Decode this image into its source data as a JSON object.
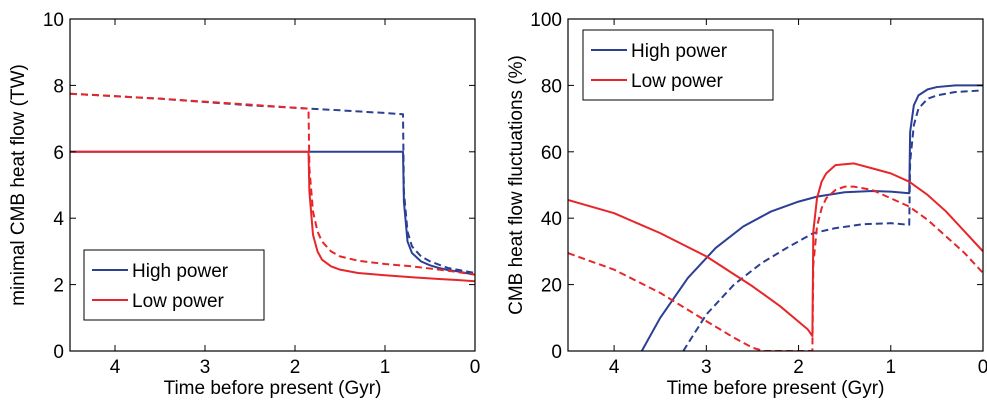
{
  "chart_data": [
    {
      "type": "line",
      "xlabel": "Time before present (Gyr)",
      "ylabel": "minimal CMB heat flow (TW)",
      "xlim": [
        4.5,
        0
      ],
      "ylim": [
        0,
        10
      ],
      "x_ticks": [
        4,
        3,
        2,
        1,
        0
      ],
      "y_ticks": [
        0,
        2,
        4,
        6,
        8,
        10
      ],
      "grid": false,
      "legend_position": "bottom-left",
      "legend": [
        "High power",
        "Low power"
      ],
      "colors": {
        "High power": "#2b3f95",
        "Low power": "#e8262a"
      },
      "series": [
        {
          "name": "High power",
          "line_style": "solid",
          "x": [
            4.5,
            0.8,
            0.79,
            0.75,
            0.7,
            0.6,
            0.5,
            0.4,
            0.3,
            0.2,
            0.1,
            0.0
          ],
          "y": [
            6.0,
            6.0,
            4.5,
            3.3,
            2.95,
            2.7,
            2.58,
            2.5,
            2.44,
            2.4,
            2.35,
            2.3
          ]
        },
        {
          "name": "High power",
          "line_style": "dashed",
          "x": [
            4.5,
            3.5,
            2.5,
            1.83,
            1.5,
            1.2,
            1.0,
            0.8,
            0.79,
            0.75,
            0.7,
            0.6,
            0.5,
            0.4,
            0.3,
            0.2,
            0.1,
            0.0
          ],
          "y": [
            7.75,
            7.6,
            7.4,
            7.3,
            7.25,
            7.2,
            7.17,
            7.13,
            4.8,
            3.6,
            3.15,
            2.85,
            2.7,
            2.6,
            2.5,
            2.45,
            2.4,
            2.35
          ]
        },
        {
          "name": "Low power",
          "line_style": "solid",
          "x": [
            4.5,
            1.85,
            1.84,
            1.8,
            1.75,
            1.7,
            1.6,
            1.5,
            1.3,
            1.0,
            0.7,
            0.4,
            0.2,
            0.0
          ],
          "y": [
            6.0,
            6.0,
            4.8,
            3.5,
            3.0,
            2.75,
            2.55,
            2.45,
            2.35,
            2.28,
            2.22,
            2.17,
            2.14,
            2.1
          ]
        },
        {
          "name": "Low power",
          "line_style": "dashed",
          "x": [
            4.5,
            3.5,
            2.5,
            1.85,
            1.84,
            1.8,
            1.75,
            1.7,
            1.6,
            1.5,
            1.3,
            1.0,
            0.7,
            0.4,
            0.2,
            0.0
          ],
          "y": [
            7.75,
            7.6,
            7.42,
            7.3,
            5.5,
            4.2,
            3.6,
            3.3,
            3.0,
            2.85,
            2.72,
            2.62,
            2.55,
            2.45,
            2.38,
            2.3
          ]
        }
      ]
    },
    {
      "type": "line",
      "xlabel": "Time before present (Gyr)",
      "ylabel": "CMB heat flow fluctuations (%)",
      "xlim": [
        4.5,
        0
      ],
      "ylim": [
        0,
        100
      ],
      "x_ticks": [
        4,
        3,
        2,
        1,
        0
      ],
      "y_ticks": [
        0,
        20,
        40,
        60,
        80,
        100
      ],
      "grid": false,
      "legend_position": "top-left",
      "legend": [
        "High power",
        "Low power"
      ],
      "colors": {
        "High power": "#2b3f95",
        "Low power": "#e8262a"
      },
      "series": [
        {
          "name": "High power",
          "line_style": "solid",
          "x": [
            3.7,
            3.5,
            3.2,
            2.9,
            2.6,
            2.3,
            2.0,
            1.8,
            1.5,
            1.2,
            1.0,
            0.8,
            0.79,
            0.75,
            0.7,
            0.6,
            0.5,
            0.3,
            0.0
          ],
          "y": [
            0,
            10,
            22,
            31,
            37.5,
            42,
            45,
            46.5,
            47.8,
            48.2,
            48,
            47.5,
            66,
            74,
            77,
            78.8,
            79.5,
            80,
            80
          ]
        },
        {
          "name": "High power",
          "line_style": "dashed",
          "x": [
            3.25,
            3.0,
            2.7,
            2.4,
            2.1,
            1.84,
            1.6,
            1.3,
            1.0,
            0.8,
            0.79,
            0.75,
            0.7,
            0.6,
            0.5,
            0.3,
            0.0
          ],
          "y": [
            0,
            11,
            20,
            26.5,
            31.5,
            35.5,
            37,
            38.2,
            38.5,
            38,
            57,
            68,
            73,
            76,
            77,
            78,
            78.5
          ]
        },
        {
          "name": "Low power",
          "line_style": "solid",
          "x": [
            4.5,
            4.0,
            3.5,
            3.0,
            2.5,
            2.2,
            1.9,
            1.85,
            1.84,
            1.8,
            1.75,
            1.7,
            1.6,
            1.4,
            1.2,
            1.0,
            0.8,
            0.6,
            0.4,
            0.2,
            0.0
          ],
          "y": [
            45.5,
            41.5,
            35.5,
            28.5,
            19.5,
            13.5,
            6.5,
            4.5,
            36,
            46,
            51,
            53.5,
            56,
            56.5,
            55,
            53.5,
            51,
            47,
            42,
            36,
            30
          ]
        },
        {
          "name": "Low power",
          "line_style": "dashed",
          "x": [
            4.5,
            4.0,
            3.5,
            3.0,
            2.7,
            2.5,
            2.38,
            1.85,
            1.84,
            1.8,
            1.75,
            1.7,
            1.6,
            1.5,
            1.4,
            1.2,
            1.0,
            0.8,
            0.6,
            0.4,
            0.2,
            0.0
          ],
          "y": [
            29.5,
            24.5,
            17.5,
            9,
            4,
            1,
            0,
            0,
            26,
            37.5,
            43,
            46,
            48.5,
            49.5,
            49.5,
            48.5,
            46,
            43.5,
            39.5,
            34.5,
            29.5,
            23.5
          ]
        }
      ]
    }
  ]
}
